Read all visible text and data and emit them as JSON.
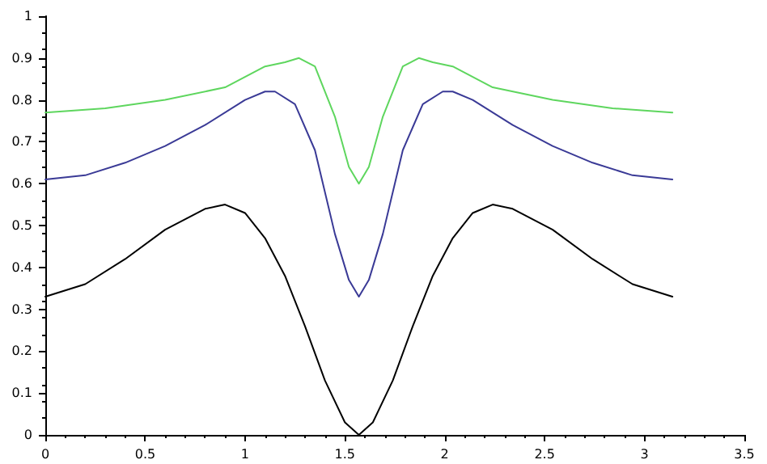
{
  "chart_data": {
    "type": "line",
    "xlim": [
      0,
      3.5
    ],
    "xticks": [
      0,
      0.5,
      1,
      1.5,
      2,
      2.5,
      3,
      3.5
    ],
    "ylim": [
      0,
      1
    ],
    "yticks": [
      0,
      0.1,
      0.2,
      0.3,
      0.4,
      0.5,
      0.6,
      0.7,
      0.8,
      0.9,
      1
    ],
    "grid": false,
    "marker": "none",
    "line_style": "solid",
    "series": [
      {
        "color": "#000000",
        "x": [
          0,
          0.2,
          0.4,
          0.6,
          0.8,
          0.9,
          1.0,
          1.1,
          1.2,
          1.3,
          1.4,
          1.5,
          1.57,
          1.64,
          1.74,
          1.84,
          1.94,
          2.04,
          2.14,
          2.24,
          2.34,
          2.54,
          2.74,
          2.94,
          3.14
        ],
        "values": [
          0.33,
          0.36,
          0.42,
          0.49,
          0.54,
          0.55,
          0.53,
          0.47,
          0.38,
          0.26,
          0.13,
          0.03,
          0,
          0.03,
          0.13,
          0.26,
          0.38,
          0.47,
          0.53,
          0.55,
          0.54,
          0.49,
          0.42,
          0.36,
          0.33
        ]
      },
      {
        "color": "#3a3a96",
        "x": [
          0,
          0.2,
          0.4,
          0.6,
          0.8,
          1.0,
          1.1,
          1.15,
          1.25,
          1.35,
          1.45,
          1.52,
          1.57,
          1.62,
          1.69,
          1.79,
          1.89,
          1.99,
          2.04,
          2.14,
          2.34,
          2.54,
          2.74,
          2.94,
          3.14
        ],
        "values": [
          0.61,
          0.62,
          0.65,
          0.69,
          0.74,
          0.8,
          0.82,
          0.82,
          0.79,
          0.68,
          0.48,
          0.37,
          0.33,
          0.37,
          0.48,
          0.68,
          0.79,
          0.82,
          0.82,
          0.8,
          0.74,
          0.69,
          0.65,
          0.62,
          0.61
        ]
      },
      {
        "color": "#5ed65e",
        "x": [
          0,
          0.3,
          0.6,
          0.9,
          1.1,
          1.2,
          1.27,
          1.35,
          1.45,
          1.52,
          1.57,
          1.62,
          1.69,
          1.79,
          1.87,
          1.94,
          2.04,
          2.24,
          2.54,
          2.84,
          3.14
        ],
        "values": [
          0.77,
          0.78,
          0.8,
          0.83,
          0.88,
          0.89,
          0.9,
          0.88,
          0.76,
          0.64,
          0.6,
          0.64,
          0.76,
          0.88,
          0.9,
          0.89,
          0.88,
          0.83,
          0.8,
          0.78,
          0.77
        ]
      }
    ]
  }
}
